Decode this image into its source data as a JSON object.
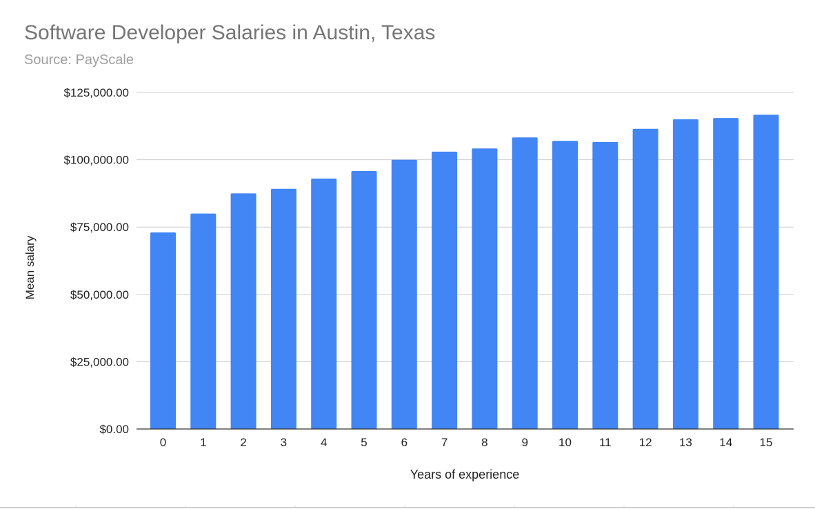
{
  "chart_data": {
    "type": "bar",
    "title": "Software Developer Salaries in Austin, Texas",
    "subtitle": "Source: PayScale",
    "xlabel": "Years of experience",
    "ylabel": "Mean salary",
    "categories": [
      "0",
      "1",
      "2",
      "3",
      "4",
      "5",
      "6",
      "7",
      "8",
      "9",
      "10",
      "11",
      "12",
      "13",
      "14",
      "15"
    ],
    "values": [
      73000,
      80000,
      87500,
      89200,
      93000,
      95800,
      100000,
      103000,
      104200,
      108300,
      107000,
      106600,
      111500,
      115000,
      115500,
      116700
    ],
    "ylim": [
      0,
      125000
    ],
    "yticks": [
      0,
      25000,
      50000,
      75000,
      100000,
      125000
    ],
    "ytick_labels": [
      "$0.00",
      "$25,000.00",
      "$50,000.00",
      "$75,000.00",
      "$100,000.00",
      "$125,000.00"
    ],
    "grid": true,
    "legend": "none",
    "bar_color": "#4285f4",
    "grid_color": "#cccccc",
    "axis_color": "#333333"
  }
}
